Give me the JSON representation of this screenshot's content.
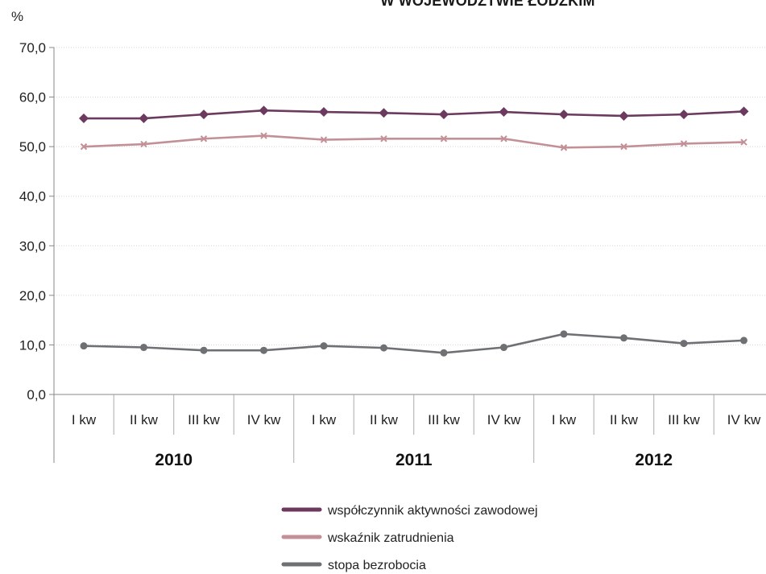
{
  "chart_data": {
    "type": "line",
    "title": "W WOJEWÓDZTWIE ŁÓDZKIM",
    "ylabel": "%",
    "xlabel": "",
    "ylim": [
      0,
      70
    ],
    "yticks": [
      "0,0",
      "10,0",
      "20,0",
      "30,0",
      "40,0",
      "50,0",
      "60,0",
      "70,0"
    ],
    "grid": true,
    "legend_position": "bottom",
    "categories": [
      "I kw",
      "II kw",
      "III kw",
      "IV kw",
      "I kw",
      "II kw",
      "III kw",
      "IV kw",
      "I kw",
      "II kw",
      "III kw",
      "IV kw"
    ],
    "groups": [
      {
        "label": "2010",
        "span": 4
      },
      {
        "label": "2011",
        "span": 4
      },
      {
        "label": "2012",
        "span": 4
      }
    ],
    "series": [
      {
        "name": "współczynnik aktywności zawodowej",
        "color": "#6b3a5e",
        "marker": "diamond",
        "values": [
          55.7,
          55.7,
          56.5,
          57.3,
          57.0,
          56.8,
          56.5,
          57.0,
          56.5,
          56.2,
          56.5,
          57.1
        ]
      },
      {
        "name": "wskaźnik zatrudnienia",
        "color": "#c49098",
        "marker": "x",
        "values": [
          50.0,
          50.5,
          51.6,
          52.2,
          51.4,
          51.6,
          51.6,
          51.6,
          49.8,
          50.0,
          50.6,
          50.9
        ]
      },
      {
        "name": "stopa bezrobocia",
        "color": "#6e7073",
        "marker": "circle",
        "values": [
          9.8,
          9.5,
          8.9,
          8.9,
          9.8,
          9.4,
          8.4,
          9.5,
          12.2,
          11.4,
          10.3,
          10.9
        ]
      }
    ]
  }
}
